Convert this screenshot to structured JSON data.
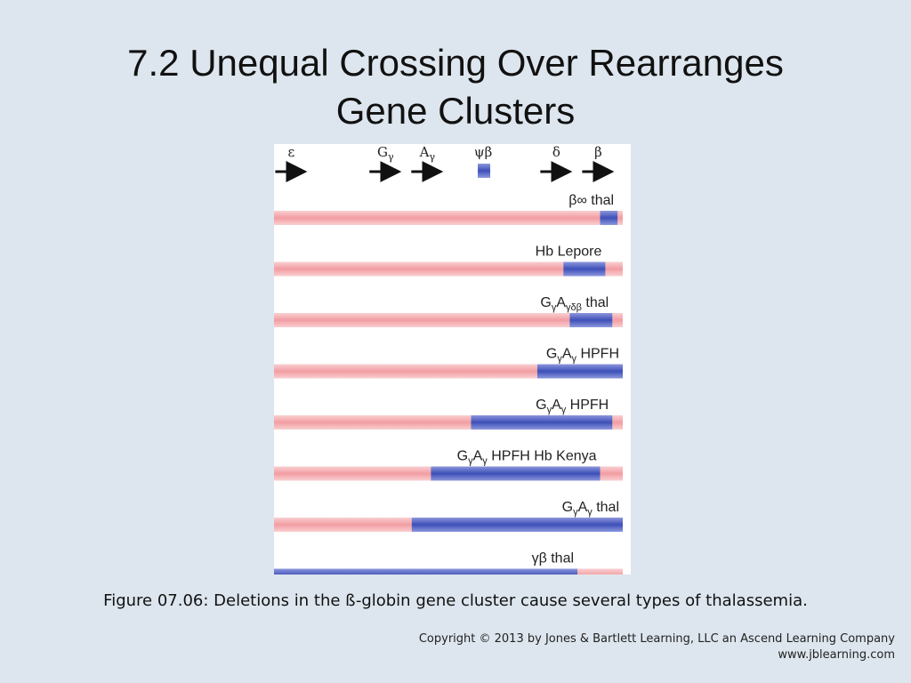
{
  "slide": {
    "title_line1": "7.2  Unequal Crossing Over Rearranges",
    "title_line2": "Gene Clusters",
    "caption": "Figure 07.06: Deletions in the ß-globin gene cluster cause several types of thalassemia.",
    "copyright_line1": "Copyright © 2013 by Jones & Bartlett Learning, LLC an Ascend Learning Company",
    "copyright_line2": "www.jblearning.com"
  },
  "colors": {
    "retained": "#f4a9ad",
    "deleted": "#4f5fbf",
    "arrow": "#111111",
    "pseudogene": "#6a78cc"
  },
  "genes": [
    {
      "name": "ε",
      "sub": "",
      "type": "gene-arrow-icon",
      "pos": 0.07
    },
    {
      "name": "G",
      "sub": "γ",
      "type": "gene-arrow-icon",
      "pos": 0.34
    },
    {
      "name": "A",
      "sub": "γ",
      "type": "gene-arrow-icon",
      "pos": 0.46
    },
    {
      "name": "ψβ",
      "sub": "",
      "type": "pseudogene-box-icon",
      "pos": 0.62
    },
    {
      "name": "δ",
      "sub": "",
      "type": "gene-arrow-icon",
      "pos": 0.83
    },
    {
      "name": "β",
      "sub": "",
      "type": "gene-arrow-icon",
      "pos": 0.95
    }
  ],
  "deletions": [
    {
      "label": [
        {
          "t": "β∞ thal"
        }
      ],
      "start": 0.935,
      "end": 0.985
    },
    {
      "label": [
        {
          "t": "Hb Lepore"
        }
      ],
      "start": 0.83,
      "end": 0.95
    },
    {
      "label": [
        {
          "t": "G"
        },
        {
          "t": "γ",
          "sub": true
        },
        {
          "t": "A"
        },
        {
          "t": "γδβ",
          "sub": true
        },
        {
          "t": " thal"
        }
      ],
      "start": 0.848,
      "end": 0.97
    },
    {
      "label": [
        {
          "t": "G"
        },
        {
          "t": "γ",
          "sub": true
        },
        {
          "t": "A"
        },
        {
          "t": "γ",
          "sub": true
        },
        {
          "t": " HPFH"
        }
      ],
      "start": 0.755,
      "end": 1.0
    },
    {
      "label": [
        {
          "t": "G"
        },
        {
          "t": "γ",
          "sub": true
        },
        {
          "t": "A"
        },
        {
          "t": "γ",
          "sub": true
        },
        {
          "t": " HPFH"
        }
      ],
      "start": 0.565,
      "end": 0.97
    },
    {
      "label": [
        {
          "t": "G"
        },
        {
          "t": "γ",
          "sub": true
        },
        {
          "t": "A"
        },
        {
          "t": "γ",
          "sub": true
        },
        {
          "t": " HPFH Hb Kenya"
        }
      ],
      "start": 0.45,
      "end": 0.935
    },
    {
      "label": [
        {
          "t": "G"
        },
        {
          "t": "γ",
          "sub": true
        },
        {
          "t": "A"
        },
        {
          "t": "γ",
          "sub": true
        },
        {
          "t": " thal"
        }
      ],
      "start": 0.395,
      "end": 1.0
    },
    {
      "label": [
        {
          "t": "γβ thal"
        }
      ],
      "start": 0.0,
      "end": 0.87
    }
  ]
}
